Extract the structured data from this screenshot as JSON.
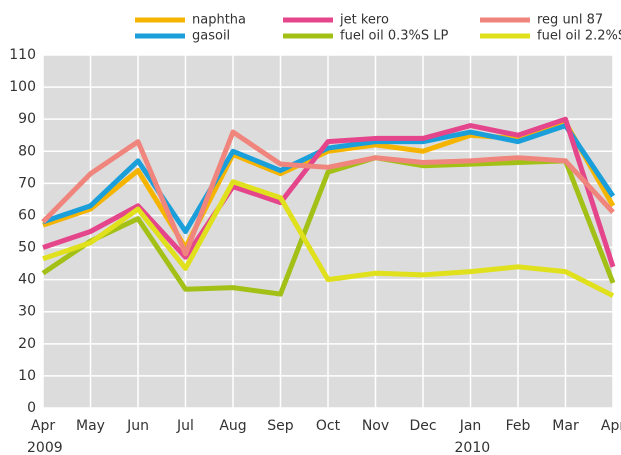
{
  "chart_data": {
    "type": "line",
    "categories": [
      "Apr",
      "May",
      "Jun",
      "Jul",
      "Aug",
      "Sep",
      "Oct",
      "Nov",
      "Dec",
      "Jan",
      "Feb",
      "Mar",
      "Apr"
    ],
    "year_labels": [
      {
        "index": 0,
        "label": "2009"
      },
      {
        "index": 9,
        "label": "2010"
      }
    ],
    "series": [
      {
        "name": "naphtha",
        "color": "#f5b400",
        "values": [
          57,
          62,
          74,
          50,
          79,
          73,
          80,
          82,
          80,
          85,
          84,
          89,
          63
        ]
      },
      {
        "name": "gasoil",
        "color": "#1a9fdb",
        "values": [
          58,
          63,
          77,
          55,
          80,
          74,
          81,
          83,
          83,
          86,
          83,
          88,
          66
        ]
      },
      {
        "name": "jet kero",
        "color": "#e4458b",
        "values": [
          50,
          55,
          63,
          47,
          69,
          64,
          83,
          84,
          84,
          88,
          85,
          90,
          44
        ]
      },
      {
        "name": "fuel oil 0.3%S LP",
        "color": "#a3c017",
        "values": [
          42,
          52,
          59,
          37,
          37.5,
          35.5,
          73.5,
          78,
          75.5,
          76,
          76.5,
          77,
          39
        ]
      },
      {
        "name": "reg unl 87",
        "color": "#f0857d",
        "values": [
          58,
          73,
          83,
          48,
          86,
          76,
          75,
          78,
          76.5,
          77,
          78,
          77,
          61
        ]
      },
      {
        "name": "fuel oil 2.2%S",
        "color": "#e0e01c",
        "values": [
          46.5,
          51.5,
          62,
          43.5,
          70.5,
          65.5,
          40,
          42,
          41.5,
          42.5,
          44,
          42.5,
          35
        ]
      }
    ],
    "ylim": [
      0,
      110
    ],
    "yticks": [
      0,
      10,
      20,
      30,
      40,
      50,
      60,
      70,
      80,
      90,
      100,
      110
    ],
    "grid": true
  }
}
